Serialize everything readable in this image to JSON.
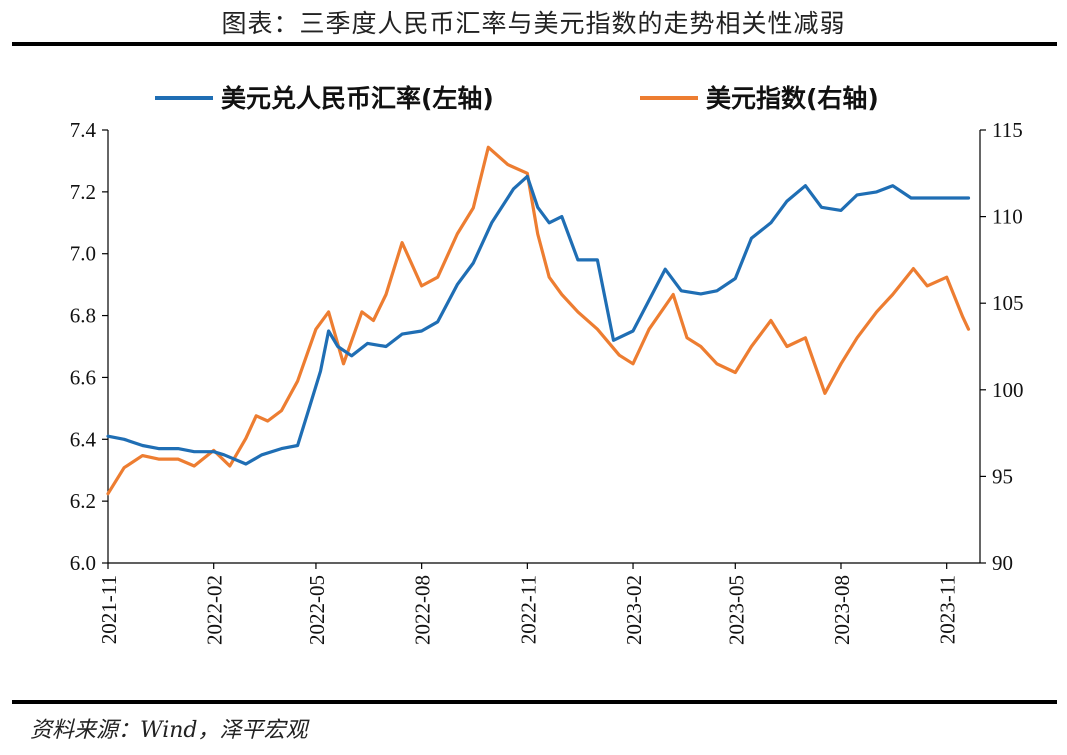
{
  "title": "图表：三季度人民币汇率与美元指数的走势相关性减弱",
  "source": "资料来源：Wind，泽平宏观",
  "chart_data": {
    "type": "line",
    "title": "图表：三季度人民币汇率与美元指数的走势相关性减弱",
    "legend_position": "top",
    "grid": false,
    "x_ticks": [
      "2021-11",
      "2022-02",
      "2022-05",
      "2022-08",
      "2022-11",
      "2023-02",
      "2023-05",
      "2023-08",
      "2023-11"
    ],
    "x_range": [
      "2021-11-01",
      "2023-11-30"
    ],
    "y_left": {
      "range": [
        6.0,
        7.4
      ],
      "ticks": [
        "6.0",
        "6.2",
        "6.4",
        "6.6",
        "6.8",
        "7.0",
        "7.2",
        "7.4"
      ]
    },
    "y_right": {
      "range": [
        90,
        115
      ],
      "ticks": [
        "90",
        "95",
        "100",
        "105",
        "110",
        "115"
      ]
    },
    "series": [
      {
        "name": "美元兑人民币汇率(左轴)",
        "axis": "left",
        "color": "#1f6eb4",
        "points": [
          [
            "2021-11-01",
            6.41
          ],
          [
            "2021-11-15",
            6.4
          ],
          [
            "2021-12-01",
            6.38
          ],
          [
            "2021-12-15",
            6.37
          ],
          [
            "2022-01-01",
            6.37
          ],
          [
            "2022-01-15",
            6.36
          ],
          [
            "2022-02-01",
            6.36
          ],
          [
            "2022-02-10",
            6.35
          ],
          [
            "2022-03-01",
            6.32
          ],
          [
            "2022-03-15",
            6.35
          ],
          [
            "2022-04-01",
            6.37
          ],
          [
            "2022-04-15",
            6.38
          ],
          [
            "2022-04-25",
            6.5
          ],
          [
            "2022-05-05",
            6.62
          ],
          [
            "2022-05-12",
            6.75
          ],
          [
            "2022-05-20",
            6.7
          ],
          [
            "2022-06-01",
            6.67
          ],
          [
            "2022-06-15",
            6.71
          ],
          [
            "2022-07-01",
            6.7
          ],
          [
            "2022-07-15",
            6.74
          ],
          [
            "2022-08-01",
            6.75
          ],
          [
            "2022-08-15",
            6.78
          ],
          [
            "2022-09-01",
            6.9
          ],
          [
            "2022-09-15",
            6.97
          ],
          [
            "2022-10-01",
            7.1
          ],
          [
            "2022-10-20",
            7.21
          ],
          [
            "2022-11-01",
            7.25
          ],
          [
            "2022-11-10",
            7.15
          ],
          [
            "2022-11-20",
            7.1
          ],
          [
            "2022-12-01",
            7.12
          ],
          [
            "2022-12-15",
            6.98
          ],
          [
            "2023-01-01",
            6.98
          ],
          [
            "2023-01-15",
            6.72
          ],
          [
            "2023-02-01",
            6.75
          ],
          [
            "2023-02-15",
            6.85
          ],
          [
            "2023-03-01",
            6.95
          ],
          [
            "2023-03-15",
            6.88
          ],
          [
            "2023-04-01",
            6.87
          ],
          [
            "2023-04-15",
            6.88
          ],
          [
            "2023-05-01",
            6.92
          ],
          [
            "2023-05-15",
            7.05
          ],
          [
            "2023-06-01",
            7.1
          ],
          [
            "2023-06-15",
            7.17
          ],
          [
            "2023-07-01",
            7.22
          ],
          [
            "2023-07-15",
            7.15
          ],
          [
            "2023-08-01",
            7.14
          ],
          [
            "2023-08-15",
            7.19
          ],
          [
            "2023-09-01",
            7.2
          ],
          [
            "2023-09-15",
            7.22
          ],
          [
            "2023-10-01",
            7.18
          ],
          [
            "2023-10-15",
            7.18
          ],
          [
            "2023-11-01",
            7.18
          ],
          [
            "2023-11-20",
            7.18
          ]
        ]
      },
      {
        "name": "美元指数(右轴)",
        "axis": "right",
        "color": "#ed7d31",
        "points": [
          [
            "2021-11-01",
            94.0
          ],
          [
            "2021-11-15",
            95.5
          ],
          [
            "2021-12-01",
            96.2
          ],
          [
            "2021-12-15",
            96.0
          ],
          [
            "2022-01-01",
            96.0
          ],
          [
            "2022-01-15",
            95.6
          ],
          [
            "2022-02-01",
            96.5
          ],
          [
            "2022-02-15",
            95.6
          ],
          [
            "2022-03-01",
            97.2
          ],
          [
            "2022-03-10",
            98.5
          ],
          [
            "2022-03-20",
            98.2
          ],
          [
            "2022-04-01",
            98.8
          ],
          [
            "2022-04-15",
            100.5
          ],
          [
            "2022-05-01",
            103.5
          ],
          [
            "2022-05-12",
            104.5
          ],
          [
            "2022-05-25",
            101.5
          ],
          [
            "2022-06-10",
            104.5
          ],
          [
            "2022-06-20",
            104.0
          ],
          [
            "2022-07-01",
            105.5
          ],
          [
            "2022-07-15",
            108.5
          ],
          [
            "2022-08-01",
            106.0
          ],
          [
            "2022-08-15",
            106.5
          ],
          [
            "2022-09-01",
            109.0
          ],
          [
            "2022-09-15",
            110.5
          ],
          [
            "2022-09-28",
            114.0
          ],
          [
            "2022-10-15",
            113.0
          ],
          [
            "2022-11-01",
            112.5
          ],
          [
            "2022-11-10",
            109.0
          ],
          [
            "2022-11-20",
            106.5
          ],
          [
            "2022-12-01",
            105.5
          ],
          [
            "2022-12-15",
            104.5
          ],
          [
            "2023-01-01",
            103.5
          ],
          [
            "2023-01-20",
            102.0
          ],
          [
            "2023-02-01",
            101.5
          ],
          [
            "2023-02-15",
            103.5
          ],
          [
            "2023-03-08",
            105.5
          ],
          [
            "2023-03-20",
            103.0
          ],
          [
            "2023-04-01",
            102.5
          ],
          [
            "2023-04-15",
            101.5
          ],
          [
            "2023-05-01",
            101.0
          ],
          [
            "2023-05-15",
            102.5
          ],
          [
            "2023-06-01",
            104.0
          ],
          [
            "2023-06-15",
            102.5
          ],
          [
            "2023-07-01",
            103.0
          ],
          [
            "2023-07-18",
            99.8
          ],
          [
            "2023-08-01",
            101.5
          ],
          [
            "2023-08-15",
            103.0
          ],
          [
            "2023-09-01",
            104.5
          ],
          [
            "2023-09-15",
            105.5
          ],
          [
            "2023-10-03",
            107.0
          ],
          [
            "2023-10-15",
            106.0
          ],
          [
            "2023-11-01",
            106.5
          ],
          [
            "2023-11-15",
            104.2
          ],
          [
            "2023-11-20",
            103.5
          ]
        ]
      }
    ]
  }
}
